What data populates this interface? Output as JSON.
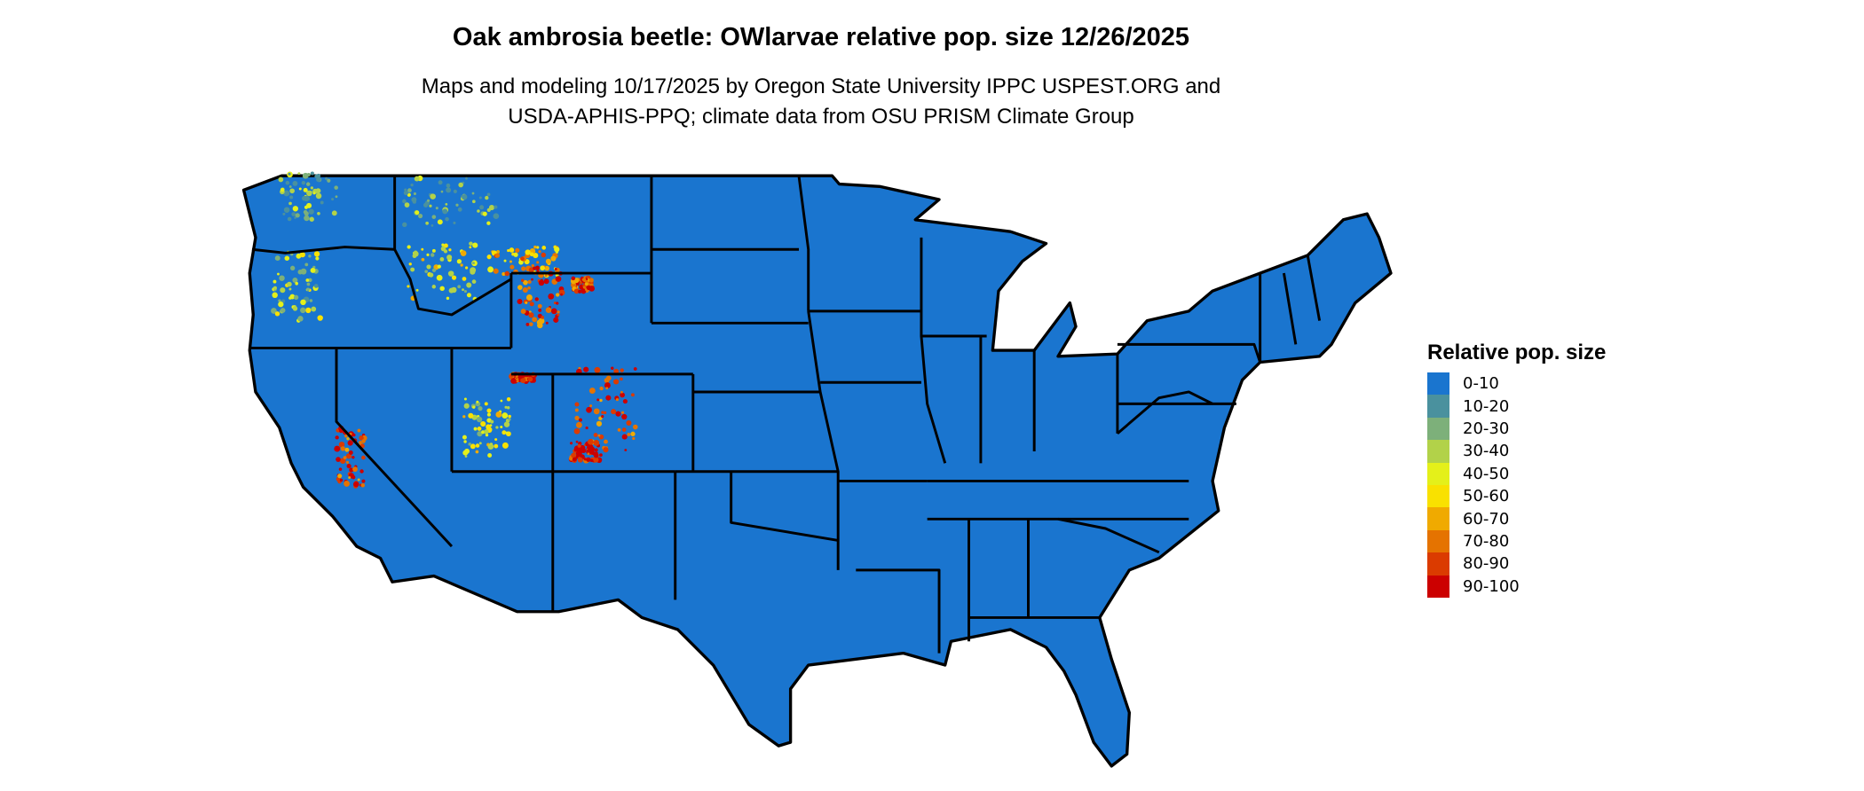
{
  "title": "Oak ambrosia beetle: OWlarvae relative pop. size 12/26/2025",
  "subtitle_line1": "Maps and modeling 10/17/2025 by Oregon State University IPPC USPEST.ORG and",
  "subtitle_line2": "USDA-APHIS-PPQ; climate data from OSU PRISM Climate Group",
  "map": {
    "region": "Contiguous United States",
    "base_color": "#1a75cf",
    "border_color": "#000000"
  },
  "legend": {
    "title": "Relative pop. size",
    "items": [
      {
        "label": "0-10",
        "color": "#1a75cf"
      },
      {
        "label": "10-20",
        "color": "#4a919e"
      },
      {
        "label": "20-30",
        "color": "#7db07a"
      },
      {
        "label": "30-40",
        "color": "#b2d249"
      },
      {
        "label": "40-50",
        "color": "#e4f01a"
      },
      {
        "label": "50-60",
        "color": "#f9e100"
      },
      {
        "label": "60-70",
        "color": "#f0aa00"
      },
      {
        "label": "70-80",
        "color": "#e57300"
      },
      {
        "label": "80-90",
        "color": "#db3b00"
      },
      {
        "label": "90-100",
        "color": "#cc0000"
      }
    ]
  }
}
